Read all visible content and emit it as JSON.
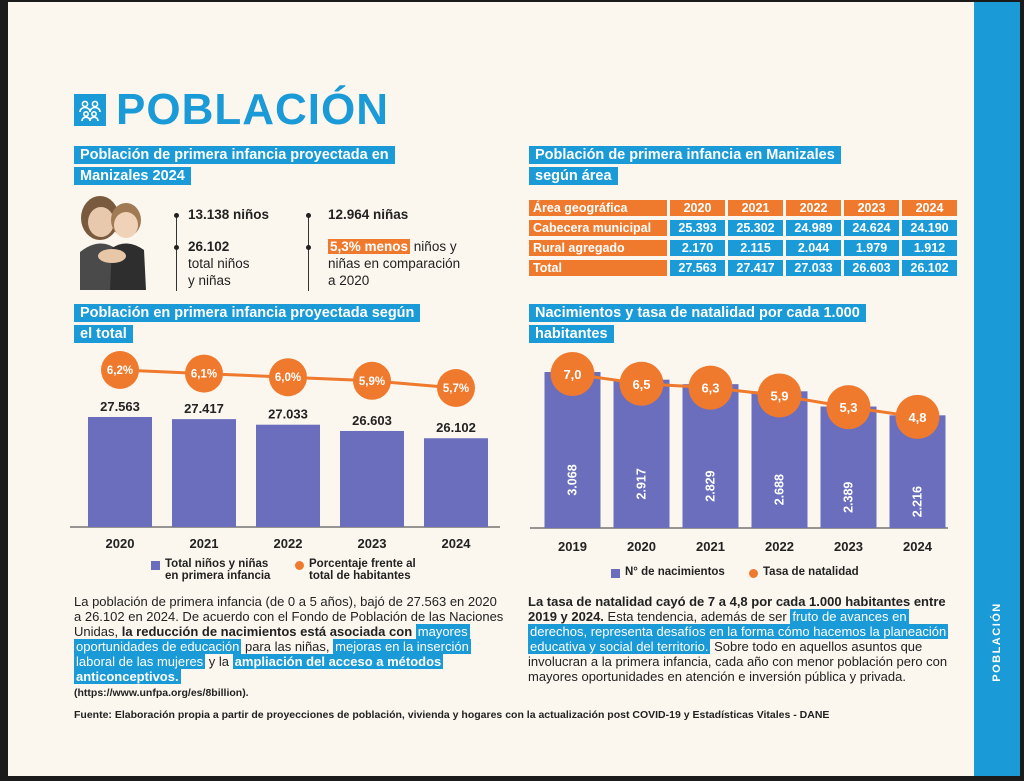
{
  "sidebar_label": "POBLACIÓN",
  "title": "POBLACIÓN",
  "colors": {
    "blue": "#1a9ad6",
    "orange": "#ef7a2e",
    "bar": "#6a6ebd",
    "background": "#fbf7ef"
  },
  "section1": {
    "title_line1": "Población de primera infancia proyectada en",
    "title_line2": "Manizales 2024",
    "ninos": "13.138 niños",
    "ninas": "12.964 niñas",
    "total_line1": "26.102",
    "total_line2": "total niños",
    "total_line3": "y niñas",
    "menos_hl": "5,3% menos",
    "menos_rest": " niños y",
    "menos_line2": "niñas en comparación",
    "menos_line3": "a 2020"
  },
  "section2": {
    "title_line1": "Población de primera infancia en Manizales",
    "title_line2": "según área",
    "header": [
      "Área geográfica",
      "2020",
      "2021",
      "2022",
      "2023",
      "2024"
    ],
    "rows": [
      [
        "Cabecera municipal",
        "25.393",
        "25.302",
        "24.989",
        "24.624",
        "24.190"
      ],
      [
        "Rural agregado",
        "2.170",
        "2.115",
        "2.044",
        "1.979",
        "1.912"
      ],
      [
        "Total",
        "27.563",
        "27.417",
        "27.033",
        "26.603",
        "26.102"
      ]
    ]
  },
  "section3": {
    "title_line1": "Población en primera infancia proyectada según",
    "title_line2": "el total",
    "legend_bar_line1": "Total niños y niñas",
    "legend_bar_line2": "en primera infancia",
    "legend_pct_line1": "Porcentaje frente al",
    "legend_pct_line2": "total de habitantes"
  },
  "section4": {
    "title_line1": "Nacimientos y tasa de natalidad por cada 1.000",
    "title_line2": "habitantes",
    "legend_bar": "N° de nacimientos",
    "legend_rate": "Tasa de natalidad"
  },
  "chart_data": [
    {
      "type": "bar",
      "title": "Población en primera infancia proyectada según el total",
      "categories": [
        "2020",
        "2021",
        "2022",
        "2023",
        "2024"
      ],
      "series": [
        {
          "name": "Total niños y niñas en primera infancia",
          "values": [
            27563,
            27417,
            27033,
            26603,
            26102
          ],
          "labels": [
            "27.563",
            "27.417",
            "27.033",
            "26.603",
            "26.102"
          ]
        },
        {
          "name": "Porcentaje frente al total de habitantes",
          "values": [
            6.2,
            6.1,
            6.0,
            5.9,
            5.7
          ],
          "labels": [
            "6,2%",
            "6,1%",
            "6,0%",
            "5,9%",
            "5,7%"
          ]
        }
      ]
    },
    {
      "type": "bar",
      "title": "Nacimientos y tasa de natalidad por cada 1.000 habitantes",
      "categories": [
        "2019",
        "2020",
        "2021",
        "2022",
        "2023",
        "2024"
      ],
      "series": [
        {
          "name": "N° de nacimientos",
          "values": [
            3068,
            2917,
            2829,
            2688,
            2389,
            2216
          ],
          "labels": [
            "3.068",
            "2.917",
            "2.829",
            "2.688",
            "2.389",
            "2.216"
          ]
        },
        {
          "name": "Tasa de natalidad",
          "values": [
            7.0,
            6.5,
            6.3,
            5.9,
            5.3,
            4.8
          ],
          "labels": [
            "7,0",
            "6,5",
            "6,3",
            "5,9",
            "5,3",
            "4,8"
          ]
        }
      ]
    }
  ],
  "para_left": {
    "t1": "La población de primera infancia (de 0 a 5 años), bajó de 27.563 en 2020 a 26.102 en 2024. De acuerdo con el Fondo de Población de las Naciones Unidas, ",
    "b1": "la reducción de nacimientos está asociada con",
    "h1": "mayores oportunidades de educación",
    "t2": " para las niñas, ",
    "h2": "mejoras en la inserción laboral de las mujeres",
    "t3": " y la ",
    "h3": "ampliación del acceso a métodos anticonceptivos.",
    "url": "(https://www.unfpa.org/es/8billion)."
  },
  "para_right": {
    "b1": "La tasa de natalidad cayó de 7 a 4,8 por cada 1.000 habitantes entre 2019 y 2024.",
    "t1": " Esta tendencia, además de ser ",
    "h1": "fruto de avances en derechos, representa desafíos en la forma cómo hacemos la planeación educativa y social del territorio.",
    "t2": " Sobre todo en aquellos asuntos que involucran a la primera infancia, cada año con menor población pero con mayores oportunidades en atención e inversión pública y privada."
  },
  "source": "Fuente: Elaboración propia a partir de proyecciones de población, vivienda y hogares con la actualización post COVID-19 y Estadísticas Vitales - DANE"
}
